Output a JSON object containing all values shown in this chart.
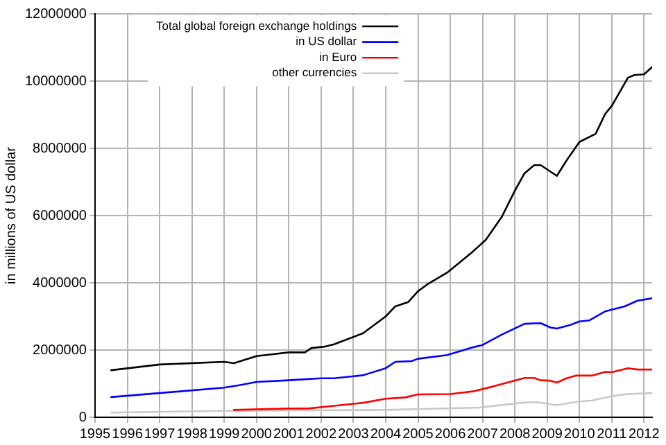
{
  "chart_data": {
    "type": "line",
    "ylabel": "in millions of US dollar",
    "xlim": [
      1995,
      2012.25
    ],
    "xticks": [
      1995,
      1996,
      1997,
      1998,
      1999,
      2000,
      2001,
      2002,
      2003,
      2004,
      2005,
      2006,
      2007,
      2008,
      2009,
      2010,
      2011,
      2012
    ],
    "ylim": [
      0,
      12000000
    ],
    "yticks": [
      0,
      2000000,
      4000000,
      6000000,
      8000000,
      10000000,
      12000000
    ],
    "grid": true,
    "legend": "top left",
    "marker": "none",
    "line_style": "solid",
    "series": [
      {
        "name": "Total global foreign exchange holdings",
        "color": "#000000",
        "x": [
          1995.5,
          1997,
          1999,
          1999.3,
          2000,
          2001,
          2001.5,
          2001.7,
          2002.1,
          2002.4,
          2003.3,
          2004,
          2004.3,
          2004.7,
          2005,
          2005.3,
          2005.9,
          2006.7,
          2007.1,
          2007.6,
          2008,
          2008.3,
          2008.6,
          2008.8,
          2009.3,
          2009.6,
          2010,
          2010.5,
          2010.8,
          2011,
          2011.5,
          2011.7,
          2012,
          2012.25
        ],
        "values": [
          1400000,
          1570000,
          1650000,
          1610000,
          1820000,
          1930000,
          1930000,
          2060000,
          2100000,
          2170000,
          2500000,
          3000000,
          3300000,
          3430000,
          3750000,
          3960000,
          4300000,
          4930000,
          5280000,
          5970000,
          6740000,
          7260000,
          7500000,
          7500000,
          7180000,
          7640000,
          8190000,
          8430000,
          9030000,
          9260000,
          10100000,
          10180000,
          10200000,
          10420000
        ]
      },
      {
        "name": "in US dollar",
        "color": "#0000ff",
        "x": [
          1995.5,
          1999,
          1999.5,
          2000,
          2001,
          2002,
          2002.4,
          2003.3,
          2004,
          2004.3,
          2004.8,
          2005,
          2005.9,
          2006.7,
          2007,
          2007.6,
          2008.3,
          2008.8,
          2009.1,
          2009.3,
          2009.7,
          2010,
          2010.3,
          2010.8,
          2011,
          2011.4,
          2011.8,
          2012.25
        ],
        "values": [
          600000,
          880000,
          960000,
          1050000,
          1100000,
          1160000,
          1160000,
          1250000,
          1460000,
          1650000,
          1670000,
          1740000,
          1850000,
          2080000,
          2150000,
          2460000,
          2780000,
          2800000,
          2670000,
          2640000,
          2740000,
          2850000,
          2880000,
          3150000,
          3200000,
          3300000,
          3470000,
          3540000
        ]
      },
      {
        "name": "in Euro",
        "color": "#ff0000",
        "x": [
          1999.3,
          2001,
          2001.6,
          2002.3,
          2003.3,
          2004,
          2004.6,
          2005,
          2006,
          2006.7,
          2007.3,
          2008.3,
          2008.6,
          2008.8,
          2009.1,
          2009.3,
          2009.6,
          2009.9,
          2010.4,
          2010.8,
          2011,
          2011.5,
          2011.8,
          2012.25
        ],
        "values": [
          220000,
          260000,
          260000,
          330000,
          430000,
          550000,
          590000,
          680000,
          690000,
          770000,
          910000,
          1170000,
          1170000,
          1100000,
          1090000,
          1030000,
          1160000,
          1240000,
          1240000,
          1350000,
          1340000,
          1460000,
          1420000,
          1420000
        ]
      },
      {
        "name": "other currencies",
        "color": "#c8c8c8",
        "x": [
          1995.5,
          1999,
          2004,
          2006.9,
          2008.3,
          2008.7,
          2009.3,
          2009.9,
          2010.4,
          2011,
          2011.5,
          2012.25
        ],
        "values": [
          140000,
          190000,
          220000,
          290000,
          440000,
          450000,
          360000,
          460000,
          500000,
          630000,
          690000,
          720000
        ]
      }
    ]
  }
}
